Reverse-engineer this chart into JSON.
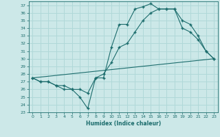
{
  "title": "",
  "xlabel": "Humidex (Indice chaleur)",
  "bg_color": "#cce8e8",
  "line_color": "#1a6b6b",
  "grid_color": "#b0d8d8",
  "xlim": [
    -0.5,
    23.5
  ],
  "ylim": [
    23,
    37.5
  ],
  "yticks": [
    23,
    24,
    25,
    26,
    27,
    28,
    29,
    30,
    31,
    32,
    33,
    34,
    35,
    36,
    37
  ],
  "xticks": [
    0,
    1,
    2,
    3,
    4,
    5,
    6,
    7,
    8,
    9,
    10,
    11,
    12,
    13,
    14,
    15,
    16,
    17,
    18,
    19,
    20,
    21,
    22,
    23
  ],
  "line1_x": [
    0,
    1,
    2,
    3,
    4,
    5,
    6,
    7,
    8,
    9,
    10,
    11,
    12,
    13,
    14,
    15,
    16,
    17,
    18,
    19,
    20,
    21,
    22,
    23
  ],
  "line1_y": [
    27.5,
    27.0,
    27.0,
    26.5,
    26.0,
    26.0,
    25.0,
    23.5,
    27.5,
    27.5,
    31.5,
    34.5,
    34.5,
    36.5,
    36.8,
    37.2,
    36.5,
    36.5,
    36.5,
    34.0,
    33.5,
    32.5,
    31.0,
    30.0
  ],
  "line2_x": [
    0,
    1,
    2,
    3,
    4,
    5,
    6,
    7,
    8,
    9,
    10,
    11,
    12,
    13,
    14,
    15,
    16,
    17,
    18,
    19,
    20,
    21,
    22,
    23
  ],
  "line2_y": [
    27.5,
    27.0,
    27.0,
    26.5,
    26.5,
    26.0,
    26.0,
    25.5,
    27.5,
    28.0,
    29.5,
    31.5,
    32.0,
    33.5,
    35.0,
    36.0,
    36.5,
    36.5,
    36.5,
    35.0,
    34.5,
    33.0,
    31.0,
    30.0
  ],
  "line3_x": [
    0,
    23
  ],
  "line3_y": [
    27.5,
    30.0
  ]
}
